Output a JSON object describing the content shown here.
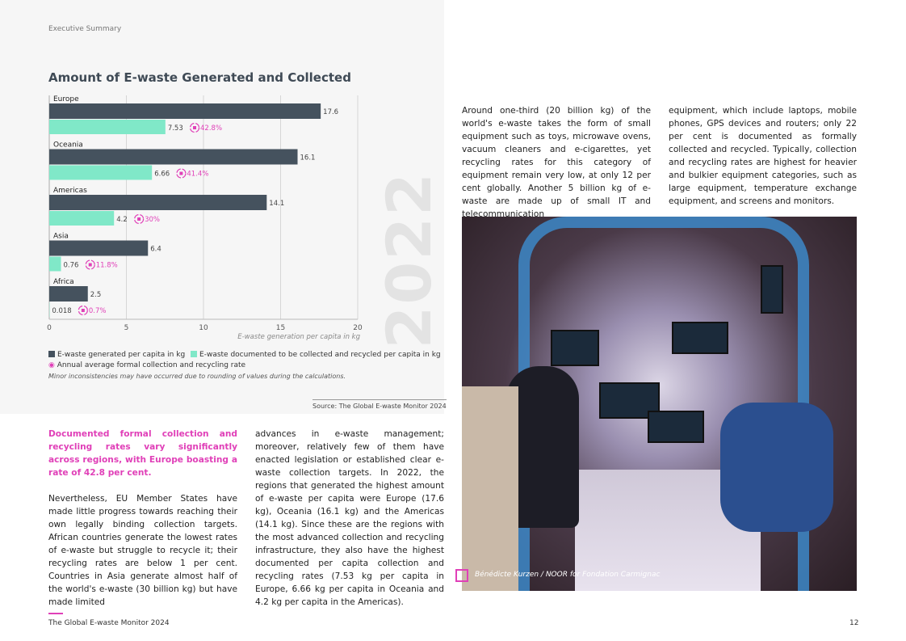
{
  "running_header": "Executive Summary",
  "chart_data": {
    "type": "bar",
    "orientation": "horizontal",
    "title": "Amount of E-waste Generated and Collected",
    "categories": [
      "Europe",
      "Oceania",
      "Americas",
      "Asia",
      "Africa"
    ],
    "series": [
      {
        "name": "E-waste generated per capita in kg",
        "values": [
          17.6,
          16.1,
          14.1,
          6.4,
          2.5
        ],
        "color": "#45525e"
      },
      {
        "name": "E-waste documented to be collected and recycled per capita in kg",
        "values": [
          7.53,
          6.66,
          4.2,
          0.76,
          0.018
        ],
        "color": "#80e8c8"
      }
    ],
    "rates": {
      "name": "Annual average formal collection and recycling rate",
      "values": [
        "42.8%",
        "41.4%",
        "30%",
        "11.8%",
        "0.7%"
      ],
      "color": "#e040b8"
    },
    "value_labels": {
      "generated": [
        "17.6",
        "16.1",
        "14.1",
        "6.4",
        "2.5"
      ],
      "collected": [
        "7.53",
        "6.66",
        "4.2",
        "0.76",
        "0.018"
      ]
    },
    "xlabel": "E-waste generation per capita in kg",
    "xlim": [
      0,
      20
    ],
    "xticks": [
      "0",
      "5",
      "10",
      "15",
      "20"
    ],
    "grid": true,
    "legend_placement": "bottom",
    "note": "Minor inconsistencies may have occurred due to rounding of values during the calculations.",
    "year_watermark": "2022"
  },
  "source": "Source: The Global E-waste Monitor 2024",
  "left_col": {
    "lead": "Documented formal collection and recycling rates vary significantly across regions, with Europe boasting a rate of 42.8 per cent.",
    "p1": "Nevertheless, EU Member States have made little progress towards reaching their own legally binding collection targets. African countries generate the lowest rates of e-waste but struggle to recycle it; their recycling rates are below 1 per cent. Countries in Asia generate almost half of the world's e-waste (30 billion kg) but have made limited"
  },
  "mid_col": {
    "p1": "advances in e-waste management; moreover, relatively few of them have enacted legislation or established clear e-waste collection targets. In 2022, the regions that generated the highest amount of e-waste per capita were Europe (17.6 kg), Oceania (16.1 kg) and the Americas (14.1 kg). Since these are the regions with the most advanced collection and recycling infrastructure, they also have the highest documented per capita collection and recycling rates (7.53 kg per capita in Europe, 6.66 kg per capita in Oceania and 4.2 kg per capita in the Americas)."
  },
  "right_col1": {
    "p1": "Around one-third (20 billion kg) of the world's e-waste takes the form of small equipment such as toys, microwave ovens, vacuum cleaners and e-cigarettes, yet recycling rates for this category of equipment remain very low, at only 12 per cent globally. Another 5 billion kg of e-waste are made up of small IT and telecommunication"
  },
  "right_col2": {
    "p1": "equipment, which include laptops, mobile phones, GPS devices and routers; only 22 per cent is documented as formally collected and recycled. Typically, collection and recycling rates are highest for heavier and bulkier equipment categories, such as large equipment, temperature exchange equipment, and screens and monitors."
  },
  "photo_credit": "Bénédicte Kurzen / NOOR for Fondation Carmignac",
  "footer": "The Global E-waste Monitor 2024",
  "page_number": "12"
}
